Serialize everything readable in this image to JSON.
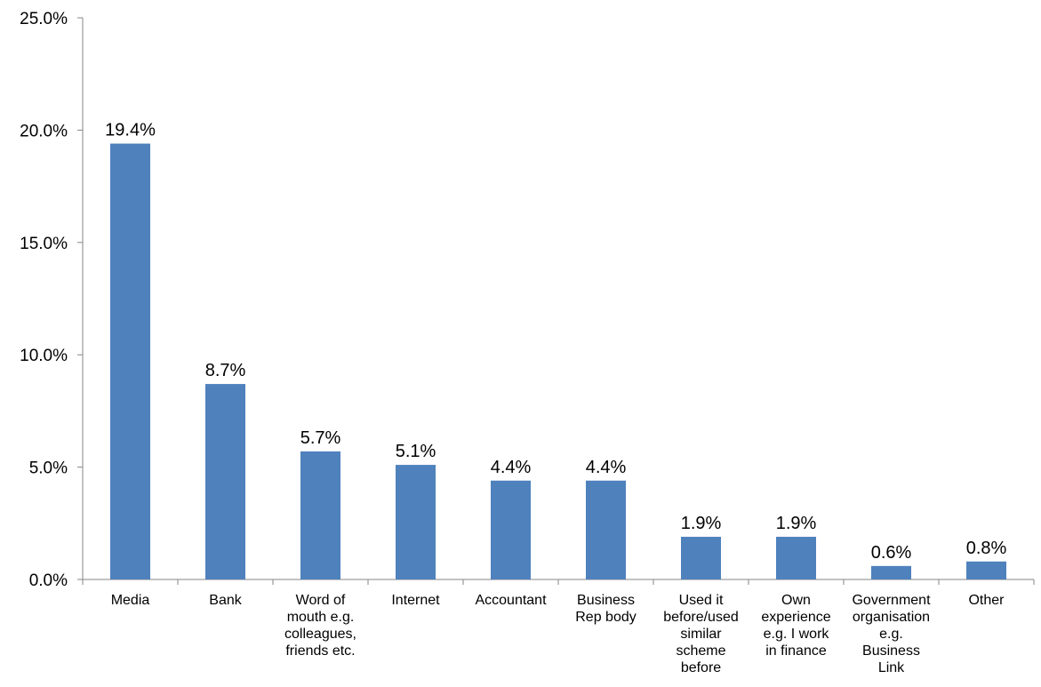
{
  "chart_data": {
    "type": "bar",
    "categories": [
      [
        "Media"
      ],
      [
        "Bank"
      ],
      [
        "Word of",
        "mouth e.g.",
        "colleagues,",
        "friends etc."
      ],
      [
        "Internet"
      ],
      [
        "Accountant"
      ],
      [
        "Business",
        "Rep body"
      ],
      [
        "Used it",
        "before/used",
        "similar",
        "scheme",
        "before"
      ],
      [
        "Own",
        "experience",
        "e.g. I work",
        "in finance"
      ],
      [
        "Government",
        "organisation",
        "e.g.",
        "Business",
        "Link"
      ],
      [
        "Other"
      ]
    ],
    "values": [
      19.4,
      8.7,
      5.7,
      5.1,
      4.4,
      4.4,
      1.9,
      1.9,
      0.6,
      0.8
    ],
    "data_labels": [
      "19.4%",
      "8.7%",
      "5.7%",
      "5.1%",
      "4.4%",
      "4.4%",
      "1.9%",
      "1.9%",
      "0.6%",
      "0.8%"
    ],
    "y_ticks": [
      "0.0%",
      "5.0%",
      "10.0%",
      "15.0%",
      "20.0%",
      "25.0%"
    ],
    "ylim": [
      0,
      25
    ],
    "bar_color": "#4F81BD",
    "grid": false,
    "title": "",
    "xlabel": "",
    "ylabel": ""
  }
}
